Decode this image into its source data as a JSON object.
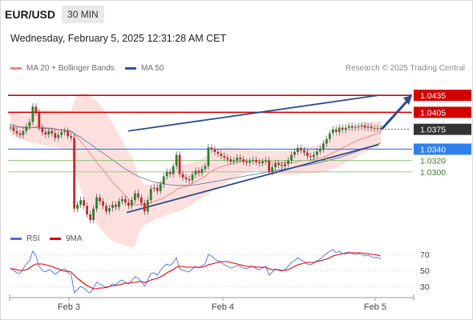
{
  "header": {
    "symbol": "EUR/USD",
    "timeframe": "30 MIN",
    "datetime": "Wednesday, February 5, 2025 12:31:28 AM CET"
  },
  "legend": {
    "ma20_label": "MA 20 + Bollinger Bands",
    "ma50_label": "MA 50",
    "credit": "Research © 2025 Trading Central"
  },
  "rsi_legend": {
    "rsi_label": "RSI",
    "ma_label": "9MA"
  },
  "colors": {
    "resistance": "#d40000",
    "support": "#2f80ed",
    "price_box": "#333333",
    "channel": "#2c4d8c",
    "bollinger": "#fcd6d3",
    "ma20": "#f08a84",
    "ma50": "#2f5597",
    "rsi": "#4a6fd8",
    "rsi_ma": "#e00000",
    "candle_up": "#2e7d32",
    "candle_down": "#c62828"
  },
  "chart_data": [
    {
      "type": "candlestick",
      "title": "EUR/USD",
      "x_ticks": [
        "Feb 3",
        "Feb 4",
        "Feb 5"
      ],
      "ylim": [
        1.0215,
        1.0455
      ],
      "current_price": 1.0375,
      "levels": [
        {
          "value": 1.0435,
          "label": "1.0435",
          "kind": "resistance"
        },
        {
          "value": 1.0405,
          "label": "1.0405",
          "kind": "resistance"
        },
        {
          "value": 1.0375,
          "label": "1.0375",
          "kind": "price"
        },
        {
          "value": 1.034,
          "label": "1.0340",
          "kind": "pivot"
        },
        {
          "value": 1.032,
          "label": "1.0320",
          "kind": "support"
        },
        {
          "value": 1.03,
          "label": "1.0300",
          "kind": "support"
        }
      ],
      "close": [
        1.0378,
        1.0372,
        1.0368,
        1.0365,
        1.0372,
        1.038,
        1.0388,
        1.0415,
        1.0405,
        1.0378,
        1.037,
        1.0366,
        1.0372,
        1.0368,
        1.036,
        1.0365,
        1.037,
        1.0372,
        1.0363,
        1.036,
        1.0235,
        1.0242,
        1.025,
        1.024,
        1.0225,
        1.0215,
        1.0235,
        1.0255,
        1.0248,
        1.024,
        1.023,
        1.0236,
        1.0242,
        1.0238,
        1.0248,
        1.0252,
        1.0246,
        1.024,
        1.025,
        1.0262,
        1.0255,
        1.0245,
        1.023,
        1.025,
        1.027,
        1.0272,
        1.0266,
        1.0278,
        1.0292,
        1.03,
        1.0296,
        1.031,
        1.033,
        1.0296,
        1.029,
        1.0287,
        1.0285,
        1.0295,
        1.0302,
        1.0298,
        1.0305,
        1.031,
        1.0343,
        1.034,
        1.0335,
        1.0332,
        1.0328,
        1.0325,
        1.0322,
        1.0318,
        1.032,
        1.0325,
        1.0322,
        1.0318,
        1.0316,
        1.0319,
        1.0321,
        1.0317,
        1.0315,
        1.0318,
        1.032,
        1.03,
        1.0308,
        1.0315,
        1.0312,
        1.031,
        1.0314,
        1.032,
        1.033,
        1.0335,
        1.0342,
        1.0338,
        1.0334,
        1.0328,
        1.0326,
        1.033,
        1.0336,
        1.034,
        1.035,
        1.0358,
        1.0368,
        1.0375,
        1.037,
        1.0378,
        1.0374,
        1.0378,
        1.0381,
        1.0378,
        1.0379,
        1.038,
        1.0382,
        1.0378,
        1.038,
        1.0377,
        1.0376,
        1.0377,
        1.0375
      ],
      "ma20": [
        1.0384,
        1.0383,
        1.0381,
        1.0379,
        1.0378,
        1.0377,
        1.0377,
        1.0378,
        1.038,
        1.0379,
        1.0379,
        1.0378,
        1.0377,
        1.0377,
        1.0376,
        1.0375,
        1.0374,
        1.0374,
        1.0373,
        1.0373,
        1.0366,
        1.036,
        1.0354,
        1.0347,
        1.034,
        1.0331,
        1.0324,
        1.0317,
        1.031,
        1.0303,
        1.0296,
        1.0289,
        1.0282,
        1.0276,
        1.027,
        1.0264,
        1.0258,
        1.0252,
        1.0247,
        1.0241,
        1.0242,
        1.0243,
        1.0242,
        1.0243,
        1.0245,
        1.0248,
        1.025,
        1.0251,
        1.0254,
        1.0258,
        1.0261,
        1.0264,
        1.0269,
        1.0271,
        1.0273,
        1.0275,
        1.0277,
        1.028,
        1.0283,
        1.0286,
        1.0289,
        1.0292,
        1.0297,
        1.0301,
        1.0304,
        1.0307,
        1.0309,
        1.0311,
        1.0313,
        1.0314,
        1.0316,
        1.0317,
        1.0318,
        1.0318,
        1.0319,
        1.032,
        1.032,
        1.032,
        1.0319,
        1.0319,
        1.0319,
        1.0318,
        1.0316,
        1.0316,
        1.0316,
        1.0316,
        1.0316,
        1.0316,
        1.0316,
        1.0317,
        1.0318,
        1.0319,
        1.032,
        1.032,
        1.0321,
        1.0322,
        1.0323,
        1.0324,
        1.0326,
        1.0328,
        1.0331,
        1.0334,
        1.0336,
        1.0339,
        1.0342,
        1.0345,
        1.0348,
        1.0351,
        1.0353,
        1.0356,
        1.0358,
        1.036,
        1.0362,
        1.0364,
        1.0366,
        1.0367,
        1.0369
      ],
      "ma50": [
        1.038,
        1.038,
        1.0379,
        1.0379,
        1.0379,
        1.0378,
        1.0378,
        1.0378,
        1.0378,
        1.0377,
        1.0377,
        1.0377,
        1.0376,
        1.0376,
        1.0375,
        1.0374,
        1.0374,
        1.0373,
        1.0372,
        1.0371,
        1.0368,
        1.0364,
        1.0361,
        1.0357,
        1.0353,
        1.0349,
        1.0345,
        1.0341,
        1.0337,
        1.0333,
        1.0329,
        1.0325,
        1.0321,
        1.0317,
        1.0313,
        1.0309,
        1.0305,
        1.0302,
        1.0298,
        1.0295,
        1.0292,
        1.029,
        1.0288,
        1.0286,
        1.0284,
        1.0282,
        1.0281,
        1.028,
        1.0279,
        1.0278,
        1.0277,
        1.0277,
        1.0276,
        1.0276,
        1.0276,
        1.0276,
        1.0276,
        1.0277,
        1.0277,
        1.0278,
        1.0279,
        1.028,
        1.0281,
        1.0282,
        1.0283,
        1.0284,
        1.0285,
        1.0286,
        1.0287,
        1.0288,
        1.0289,
        1.029,
        1.0291,
        1.0292,
        1.0293,
        1.0294,
        1.0295,
        1.0296,
        1.0297,
        1.0298,
        1.0299,
        1.03,
        1.0301,
        1.0302,
        1.0303,
        1.0304,
        1.0305,
        1.0306,
        1.0307,
        1.0308,
        1.0309,
        1.031,
        1.0311,
        1.0312,
        1.0313,
        1.0314,
        1.0315,
        1.0316,
        1.0318,
        1.0319,
        1.0321,
        1.0322,
        1.0324,
        1.0325,
        1.0327,
        1.0329,
        1.0331,
        1.0333,
        1.0335,
        1.0337,
        1.0339,
        1.0341,
        1.0343,
        1.0345,
        1.0347,
        1.0349,
        1.0351
      ],
      "bb_width": [
        0.002,
        0.002,
        0.0021,
        0.0022,
        0.0022,
        0.0023,
        0.0024,
        0.0028,
        0.003,
        0.003,
        0.0031,
        0.0032,
        0.0032,
        0.0032,
        0.0033,
        0.0033,
        0.0034,
        0.0034,
        0.0034,
        0.0034,
        0.006,
        0.0075,
        0.0085,
        0.0092,
        0.0098,
        0.0103,
        0.0106,
        0.0108,
        0.0109,
        0.0109,
        0.0108,
        0.0106,
        0.0104,
        0.01,
        0.0096,
        0.0092,
        0.0088,
        0.0084,
        0.008,
        0.0072,
        0.0055,
        0.0042,
        0.0036,
        0.0034,
        0.0033,
        0.0033,
        0.0032,
        0.0032,
        0.0033,
        0.0034,
        0.0034,
        0.0036,
        0.004,
        0.004,
        0.004,
        0.0039,
        0.0038,
        0.0037,
        0.0036,
        0.0035,
        0.0034,
        0.0034,
        0.0036,
        0.0036,
        0.0035,
        0.0034,
        0.0033,
        0.0032,
        0.0031,
        0.003,
        0.0028,
        0.0026,
        0.0024,
        0.0022,
        0.002,
        0.0019,
        0.0018,
        0.0018,
        0.0018,
        0.0018,
        0.0018,
        0.002,
        0.0021,
        0.0021,
        0.0021,
        0.0021,
        0.0021,
        0.0021,
        0.0022,
        0.0022,
        0.0023,
        0.0023,
        0.0023,
        0.0024,
        0.0024,
        0.0024,
        0.0025,
        0.0025,
        0.0026,
        0.0027,
        0.0028,
        0.0029,
        0.0029,
        0.003,
        0.003,
        0.003,
        0.003,
        0.003,
        0.0029,
        0.0028,
        0.0027,
        0.0026,
        0.0025,
        0.0024,
        0.0023,
        0.0022,
        0.0021
      ],
      "channel": {
        "upper": [
          [
            1.0372,
            1.0435
          ]
        ],
        "lower": [
          [
            1.0228,
            1.0348
          ]
        ]
      },
      "projection": {
        "from": 1.0375,
        "to": 1.0435
      }
    },
    {
      "type": "line",
      "title": "RSI",
      "y_ticks": [
        70,
        50,
        30
      ],
      "ylim": [
        20,
        80
      ],
      "series": [
        {
          "name": "RSI",
          "values": [
            53,
            50,
            47,
            46,
            52,
            58,
            62,
            74,
            68,
            55,
            50,
            48,
            51,
            49,
            45,
            48,
            51,
            52,
            47,
            45,
            22,
            26,
            30,
            28,
            24,
            22,
            28,
            35,
            33,
            31,
            28,
            30,
            33,
            32,
            36,
            38,
            35,
            33,
            37,
            42,
            40,
            36,
            30,
            38,
            46,
            47,
            44,
            50,
            55,
            58,
            56,
            60,
            66,
            52,
            50,
            49,
            48,
            52,
            55,
            53,
            56,
            58,
            70,
            68,
            64,
            62,
            60,
            57,
            55,
            53,
            54,
            56,
            55,
            53,
            52,
            54,
            55,
            52,
            51,
            53,
            55,
            44,
            48,
            52,
            50,
            49,
            51,
            55,
            60,
            62,
            66,
            63,
            61,
            58,
            57,
            59,
            62,
            64,
            68,
            71,
            74,
            76,
            72,
            74,
            71,
            72,
            73,
            71,
            70,
            71,
            70,
            68,
            69,
            67,
            66,
            66,
            64
          ]
        },
        {
          "name": "9MA",
          "values": [
            52,
            52,
            51,
            50,
            50,
            51,
            53,
            56,
            58,
            58,
            58,
            57,
            56,
            55,
            53,
            52,
            50,
            49,
            49,
            48,
            44,
            40,
            37,
            34,
            31,
            29,
            27,
            27,
            28,
            28,
            29,
            30,
            31,
            31,
            32,
            33,
            34,
            34,
            35,
            35,
            36,
            36,
            35,
            36,
            38,
            39,
            40,
            42,
            44,
            47,
            49,
            51,
            54,
            55,
            55,
            54,
            54,
            54,
            54,
            54,
            54,
            55,
            57,
            58,
            59,
            60,
            61,
            61,
            61,
            60,
            59,
            58,
            57,
            56,
            55,
            55,
            55,
            54,
            54,
            54,
            54,
            52,
            51,
            51,
            51,
            50,
            50,
            51,
            53,
            55,
            57,
            58,
            59,
            60,
            60,
            60,
            61,
            62,
            63,
            64,
            66,
            68,
            69,
            70,
            71,
            71,
            72,
            72,
            72,
            72,
            72,
            71,
            71,
            70,
            70,
            69,
            68
          ]
        }
      ]
    }
  ]
}
